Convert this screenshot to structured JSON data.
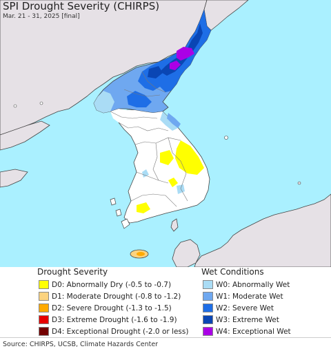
{
  "map": {
    "title": "SPI Drought Severity (CHIRPS)",
    "subtitle": "Mar. 21 - 31, 2025 [final]"
  },
  "legend": {
    "drought_heading": "Drought Severity",
    "wet_heading": "Wet Conditions",
    "drought_items": [
      {
        "label": "D0: Abnormally Dry (-0.5 to -0.7)",
        "color": "#ffff00"
      },
      {
        "label": "D1: Moderate Drought (-0.8 to -1.2)",
        "color": "#fcd37f"
      },
      {
        "label": "D2: Severe Drought (-1.3 to -1.5)",
        "color": "#ffaa00"
      },
      {
        "label": "D3: Extreme Drought (-1.6 to -1.9)",
        "color": "#e60000"
      },
      {
        "label": "D4: Exceptional Drought (-2.0 or less)",
        "color": "#730000"
      }
    ],
    "wet_items": [
      {
        "label": "W0: Abnormally Wet",
        "color": "#aadcf5"
      },
      {
        "label": "W1: Moderate Wet",
        "color": "#6fa8f0"
      },
      {
        "label": "W2: Severe Wet",
        "color": "#1e6ee6"
      },
      {
        "label": "W3: Extreme Wet",
        "color": "#0a46b4"
      },
      {
        "label": "W4: Exceptional Wet",
        "color": "#aa00e6"
      }
    ]
  },
  "source": "Source: CHIRPS, UCSB, Climate Hazards Center",
  "colors": {
    "sea": "#aaf0ff",
    "land_outside": "#e6e1e6",
    "land_normal": "#ffffff",
    "border": "#555555"
  }
}
